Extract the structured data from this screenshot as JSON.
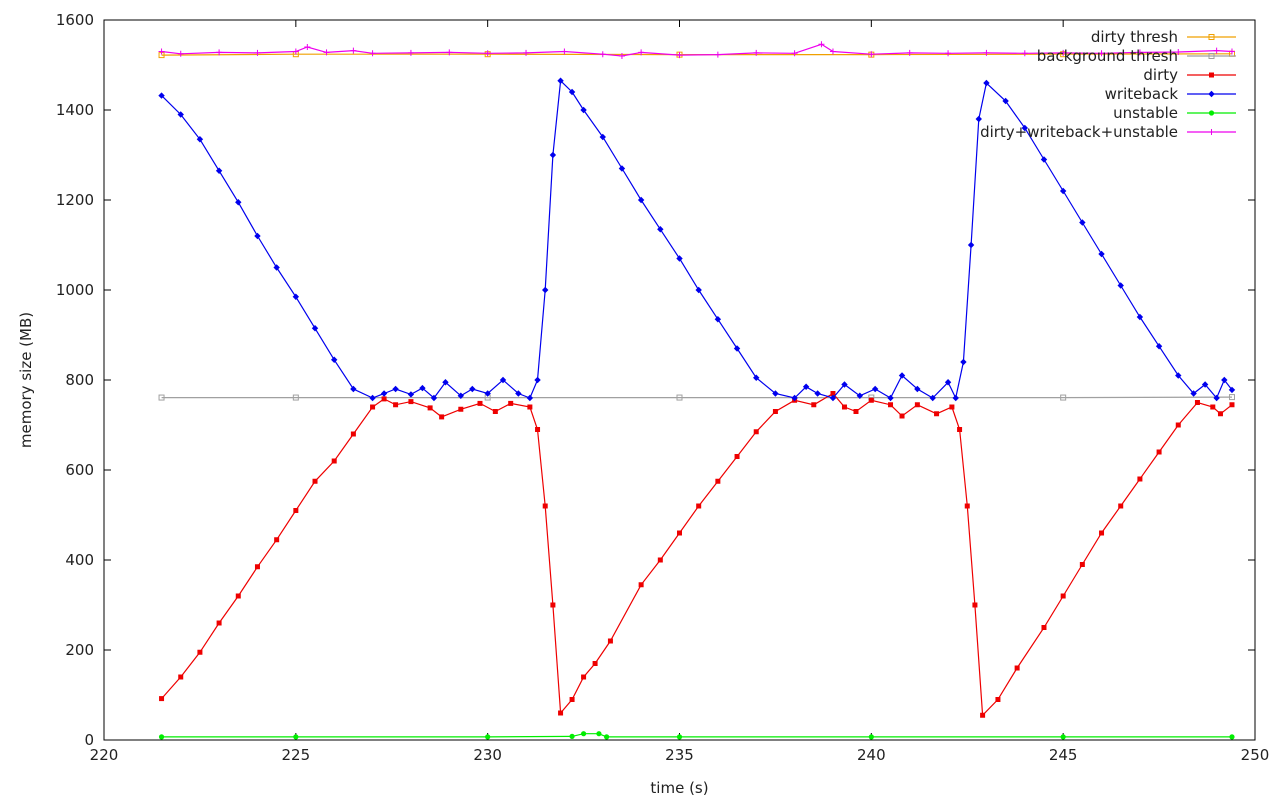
{
  "chart_data": {
    "type": "line",
    "title": "",
    "xlabel": "time (s)",
    "ylabel": "memory size (MB)",
    "xlim": [
      220,
      250
    ],
    "ylim": [
      0,
      1600
    ],
    "x_ticks": [
      220,
      225,
      230,
      235,
      240,
      245,
      250
    ],
    "y_ticks": [
      0,
      200,
      400,
      600,
      800,
      1000,
      1200,
      1400,
      1600
    ],
    "grid": false,
    "legend_position": "top-right",
    "series": [
      {
        "name": "dirty thresh",
        "color": "#f0a000",
        "marker": "square-open",
        "points": [
          [
            221.5,
            1522
          ],
          [
            225,
            1524
          ],
          [
            230,
            1524
          ],
          [
            235,
            1523
          ],
          [
            240,
            1523
          ],
          [
            245,
            1524
          ],
          [
            249.4,
            1525
          ]
        ]
      },
      {
        "name": "background thresh",
        "color": "#a0a0a0",
        "marker": "square-open",
        "points": [
          [
            221.5,
            761
          ],
          [
            225,
            761
          ],
          [
            230,
            761
          ],
          [
            235,
            761
          ],
          [
            240,
            761
          ],
          [
            245,
            761
          ],
          [
            249.4,
            762
          ]
        ]
      },
      {
        "name": "dirty",
        "color": "#ee0000",
        "marker": "square",
        "points": [
          [
            221.5,
            92
          ],
          [
            222,
            140
          ],
          [
            222.5,
            195
          ],
          [
            223,
            260
          ],
          [
            223.5,
            320
          ],
          [
            224,
            385
          ],
          [
            224.5,
            445
          ],
          [
            225,
            510
          ],
          [
            225.5,
            575
          ],
          [
            226,
            620
          ],
          [
            226.5,
            680
          ],
          [
            227,
            740
          ],
          [
            227.3,
            758
          ],
          [
            227.6,
            745
          ],
          [
            228,
            752
          ],
          [
            228.5,
            738
          ],
          [
            228.8,
            718
          ],
          [
            229.3,
            735
          ],
          [
            229.8,
            748
          ],
          [
            230.2,
            730
          ],
          [
            230.6,
            748
          ],
          [
            231.1,
            740
          ],
          [
            231.3,
            690
          ],
          [
            231.5,
            520
          ],
          [
            231.7,
            300
          ],
          [
            231.9,
            60
          ],
          [
            232.2,
            90
          ],
          [
            232.5,
            140
          ],
          [
            232.8,
            170
          ],
          [
            233.2,
            220
          ],
          [
            234,
            345
          ],
          [
            234.5,
            400
          ],
          [
            235,
            460
          ],
          [
            235.5,
            520
          ],
          [
            236,
            575
          ],
          [
            236.5,
            630
          ],
          [
            237,
            685
          ],
          [
            237.5,
            730
          ],
          [
            238,
            755
          ],
          [
            238.5,
            745
          ],
          [
            239,
            770
          ],
          [
            239.3,
            740
          ],
          [
            239.6,
            730
          ],
          [
            240,
            755
          ],
          [
            240.5,
            745
          ],
          [
            240.8,
            720
          ],
          [
            241.2,
            745
          ],
          [
            241.7,
            725
          ],
          [
            242.1,
            740
          ],
          [
            242.3,
            690
          ],
          [
            242.5,
            520
          ],
          [
            242.7,
            300
          ],
          [
            242.9,
            55
          ],
          [
            243.3,
            90
          ],
          [
            243.8,
            160
          ],
          [
            244.5,
            250
          ],
          [
            245,
            320
          ],
          [
            245.5,
            390
          ],
          [
            246,
            460
          ],
          [
            246.5,
            520
          ],
          [
            247,
            580
          ],
          [
            247.5,
            640
          ],
          [
            248,
            700
          ],
          [
            248.5,
            750
          ],
          [
            248.9,
            740
          ],
          [
            249.1,
            725
          ],
          [
            249.4,
            745
          ]
        ]
      },
      {
        "name": "writeback",
        "color": "#0000ee",
        "marker": "diamond",
        "points": [
          [
            221.5,
            1432
          ],
          [
            222,
            1390
          ],
          [
            222.5,
            1335
          ],
          [
            223,
            1265
          ],
          [
            223.5,
            1195
          ],
          [
            224,
            1120
          ],
          [
            224.5,
            1050
          ],
          [
            225,
            985
          ],
          [
            225.5,
            915
          ],
          [
            226,
            845
          ],
          [
            226.5,
            780
          ],
          [
            227,
            760
          ],
          [
            227.3,
            770
          ],
          [
            227.6,
            780
          ],
          [
            228,
            768
          ],
          [
            228.3,
            782
          ],
          [
            228.6,
            760
          ],
          [
            228.9,
            795
          ],
          [
            229.3,
            765
          ],
          [
            229.6,
            780
          ],
          [
            230,
            770
          ],
          [
            230.4,
            800
          ],
          [
            230.8,
            770
          ],
          [
            231.1,
            760
          ],
          [
            231.3,
            800
          ],
          [
            231.5,
            1000
          ],
          [
            231.7,
            1300
          ],
          [
            231.9,
            1465
          ],
          [
            232.2,
            1440
          ],
          [
            232.5,
            1400
          ],
          [
            233,
            1340
          ],
          [
            233.5,
            1270
          ],
          [
            234,
            1200
          ],
          [
            234.5,
            1135
          ],
          [
            235,
            1070
          ],
          [
            235.5,
            1000
          ],
          [
            236,
            935
          ],
          [
            236.5,
            870
          ],
          [
            237,
            805
          ],
          [
            237.5,
            770
          ],
          [
            238,
            760
          ],
          [
            238.3,
            785
          ],
          [
            238.6,
            770
          ],
          [
            239,
            760
          ],
          [
            239.3,
            790
          ],
          [
            239.7,
            765
          ],
          [
            240.1,
            780
          ],
          [
            240.5,
            760
          ],
          [
            240.8,
            810
          ],
          [
            241.2,
            780
          ],
          [
            241.6,
            760
          ],
          [
            242,
            795
          ],
          [
            242.2,
            760
          ],
          [
            242.4,
            840
          ],
          [
            242.6,
            1100
          ],
          [
            242.8,
            1380
          ],
          [
            243,
            1460
          ],
          [
            243.5,
            1420
          ],
          [
            244,
            1360
          ],
          [
            244.5,
            1290
          ],
          [
            245,
            1220
          ],
          [
            245.5,
            1150
          ],
          [
            246,
            1080
          ],
          [
            246.5,
            1010
          ],
          [
            247,
            940
          ],
          [
            247.5,
            875
          ],
          [
            248,
            810
          ],
          [
            248.4,
            770
          ],
          [
            248.7,
            790
          ],
          [
            249,
            760
          ],
          [
            249.2,
            800
          ],
          [
            249.4,
            778
          ]
        ]
      },
      {
        "name": "unstable",
        "color": "#00ee00",
        "marker": "circle",
        "points": [
          [
            221.5,
            7
          ],
          [
            225,
            7
          ],
          [
            230,
            7
          ],
          [
            232.2,
            8
          ],
          [
            232.5,
            14
          ],
          [
            232.9,
            14
          ],
          [
            233.1,
            7
          ],
          [
            235,
            7
          ],
          [
            240,
            7
          ],
          [
            245,
            7
          ],
          [
            249.4,
            7
          ]
        ]
      },
      {
        "name": "dirty+writeback+unstable",
        "color": "#ee00ee",
        "marker": "plus",
        "points": [
          [
            221.5,
            1530
          ],
          [
            222,
            1525
          ],
          [
            223,
            1528
          ],
          [
            224,
            1527
          ],
          [
            225,
            1530
          ],
          [
            225.3,
            1540
          ],
          [
            225.8,
            1528
          ],
          [
            226.5,
            1532
          ],
          [
            227,
            1526
          ],
          [
            228,
            1527
          ],
          [
            229,
            1528
          ],
          [
            230,
            1526
          ],
          [
            231,
            1527
          ],
          [
            232,
            1530
          ],
          [
            233,
            1524
          ],
          [
            233.5,
            1520
          ],
          [
            234,
            1528
          ],
          [
            235,
            1522
          ],
          [
            236,
            1523
          ],
          [
            237,
            1527
          ],
          [
            238,
            1526
          ],
          [
            238.7,
            1546
          ],
          [
            239,
            1530
          ],
          [
            240,
            1524
          ],
          [
            241,
            1527
          ],
          [
            242,
            1526
          ],
          [
            243,
            1527
          ],
          [
            244,
            1526
          ],
          [
            245,
            1527
          ],
          [
            246,
            1526
          ],
          [
            247,
            1528
          ],
          [
            248,
            1529
          ],
          [
            249,
            1532
          ],
          [
            249.4,
            1530
          ]
        ]
      }
    ]
  }
}
